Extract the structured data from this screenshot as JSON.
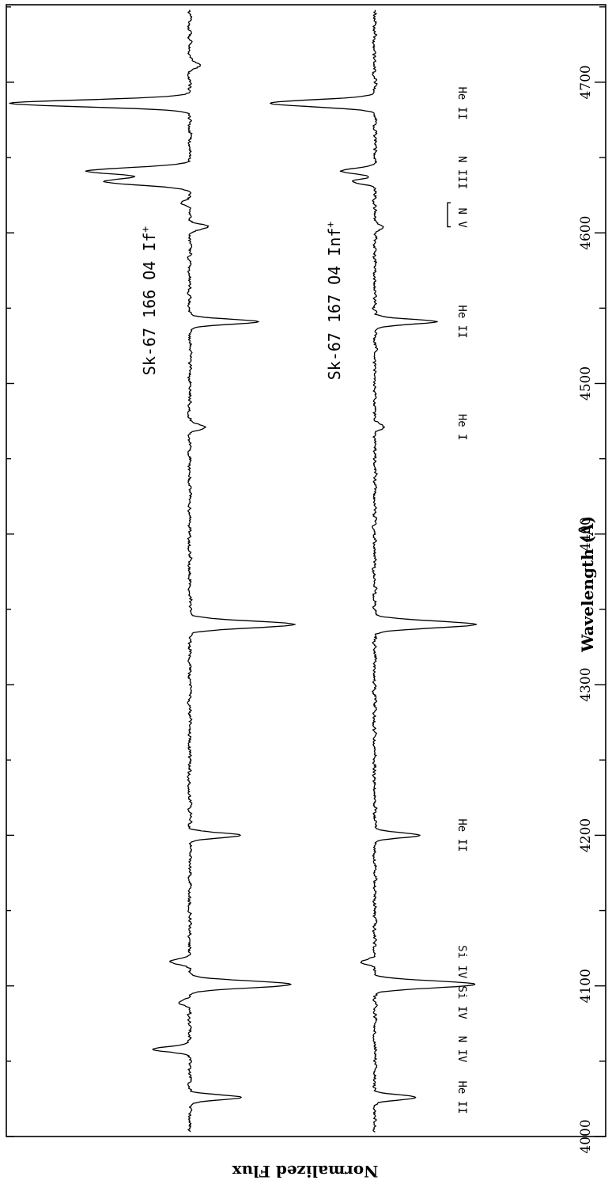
{
  "chart_data": {
    "type": "line",
    "xlabel": "Wavelength (Å)",
    "ylabel": "Normalized Flux",
    "xlim": [
      4000,
      4750
    ],
    "x_ticks": [
      4000,
      4100,
      4200,
      4300,
      4400,
      4500,
      4600,
      4700
    ],
    "x_tick_labels": [
      "4000",
      "4100",
      "4200",
      "4300",
      "4400",
      "4500",
      "4600",
      "4700"
    ],
    "y_axis_numbers_shown": false,
    "grid": false,
    "series": [
      {
        "name": "Sk-67 166   O4 If",
        "name_parts": [
          "Sk-67 166   O4 If",
          "+"
        ],
        "continuum": 1.0,
        "features": [
          {
            "wavelength": 4026,
            "depth": 0.27
          },
          {
            "wavelength": 4058,
            "depth": -0.2
          },
          {
            "wavelength": 4089,
            "depth": -0.06
          },
          {
            "wavelength": 4101,
            "depth": 0.53
          },
          {
            "wavelength": 4116,
            "depth": -0.1
          },
          {
            "wavelength": 4200,
            "depth": 0.27
          },
          {
            "wavelength": 4340,
            "depth": 0.55
          },
          {
            "wavelength": 4471,
            "depth": 0.09
          },
          {
            "wavelength": 4541,
            "depth": 0.36
          },
          {
            "wavelength": 4604,
            "depth": 0.1
          },
          {
            "wavelength": 4620,
            "depth": -0.05
          },
          {
            "wavelength": 4634,
            "depth": -0.45
          },
          {
            "wavelength": 4641,
            "depth": -0.54
          },
          {
            "wavelength": 4686,
            "depth": -0.94
          },
          {
            "wavelength": 4711,
            "depth": 0.05
          }
        ]
      },
      {
        "name": "Sk-67 167   O4 Inf",
        "name_parts": [
          "Sk-67 167   O4 Inf",
          "+"
        ],
        "continuum": 0.0,
        "features": [
          {
            "wavelength": 4026,
            "depth": 0.22
          },
          {
            "wavelength": 4101,
            "depth": 0.53
          },
          {
            "wavelength": 4116,
            "depth": -0.07
          },
          {
            "wavelength": 4200,
            "depth": 0.24
          },
          {
            "wavelength": 4340,
            "depth": 0.53
          },
          {
            "wavelength": 4471,
            "depth": 0.05
          },
          {
            "wavelength": 4541,
            "depth": 0.32
          },
          {
            "wavelength": 4604,
            "depth": 0.04
          },
          {
            "wavelength": 4634,
            "depth": -0.12
          },
          {
            "wavelength": 4641,
            "depth": -0.18
          },
          {
            "wavelength": 4686,
            "depth": -0.55
          }
        ]
      }
    ],
    "annotations": [
      {
        "text": "He II",
        "wavelength": 4026
      },
      {
        "text": "N IV",
        "wavelength": 4058
      },
      {
        "text": "Si IV",
        "wavelength": 4089
      },
      {
        "text": "Si IV",
        "wavelength": 4116
      },
      {
        "text": "He II",
        "wavelength": 4200
      },
      {
        "text": "He I",
        "wavelength": 4471
      },
      {
        "text": "He II",
        "wavelength": 4541
      },
      {
        "text": "N V",
        "wavelength": 4610,
        "bracket": [
          4604,
          4620
        ]
      },
      {
        "text": "N III",
        "wavelength": 4640
      },
      {
        "text": "He II",
        "wavelength": 4686
      }
    ]
  }
}
